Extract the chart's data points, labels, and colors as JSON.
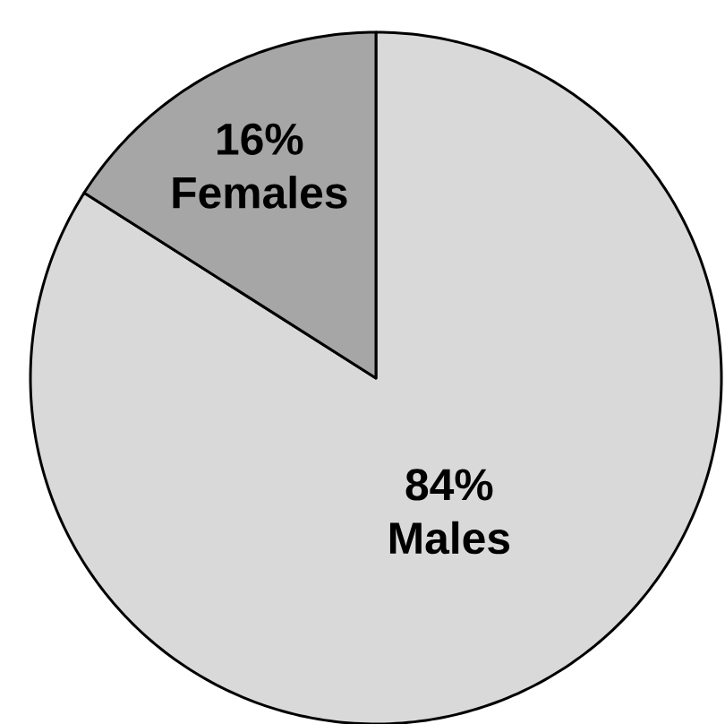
{
  "chart_data": {
    "type": "pie",
    "categories": [
      "Males",
      "Females"
    ],
    "values": [
      84,
      16
    ],
    "colors": [
      "#d9d9d9",
      "#a6a6a6"
    ],
    "value_labels": [
      "84%",
      "16%"
    ]
  }
}
